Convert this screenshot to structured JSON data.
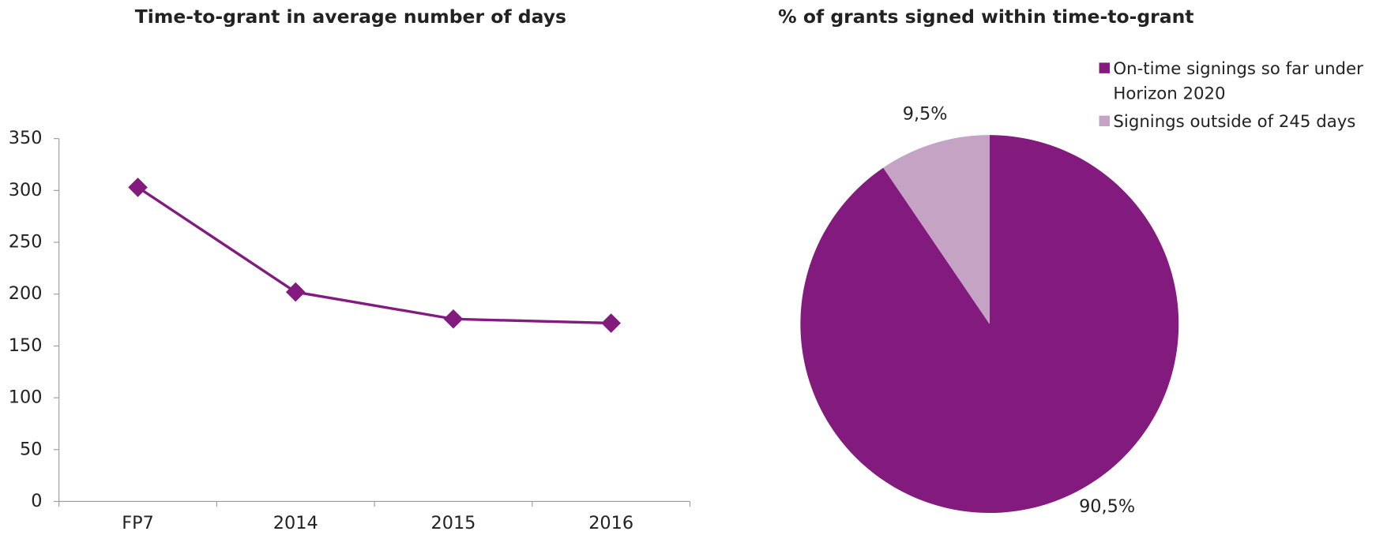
{
  "chart_data": [
    {
      "type": "line",
      "title": "Time-to-grant in average number of days",
      "categories": [
        "FP7",
        "2014",
        "2015",
        "2016"
      ],
      "values": [
        303,
        202,
        176,
        172
      ],
      "color": "#831a7e",
      "ylim": [
        0,
        350
      ],
      "yticks": [
        0,
        50,
        100,
        150,
        200,
        250,
        300,
        350
      ]
    },
    {
      "type": "pie",
      "title": "% of grants signed within time-to-grant",
      "categories": [
        "On-time signings so far under Horizon 2020",
        "Signings outside of 245 days"
      ],
      "values": [
        90.5,
        9.5
      ],
      "value_labels": [
        "90,5%",
        "9,5%"
      ],
      "colors": [
        "#831a7e",
        "#c5a3c5"
      ]
    }
  ]
}
